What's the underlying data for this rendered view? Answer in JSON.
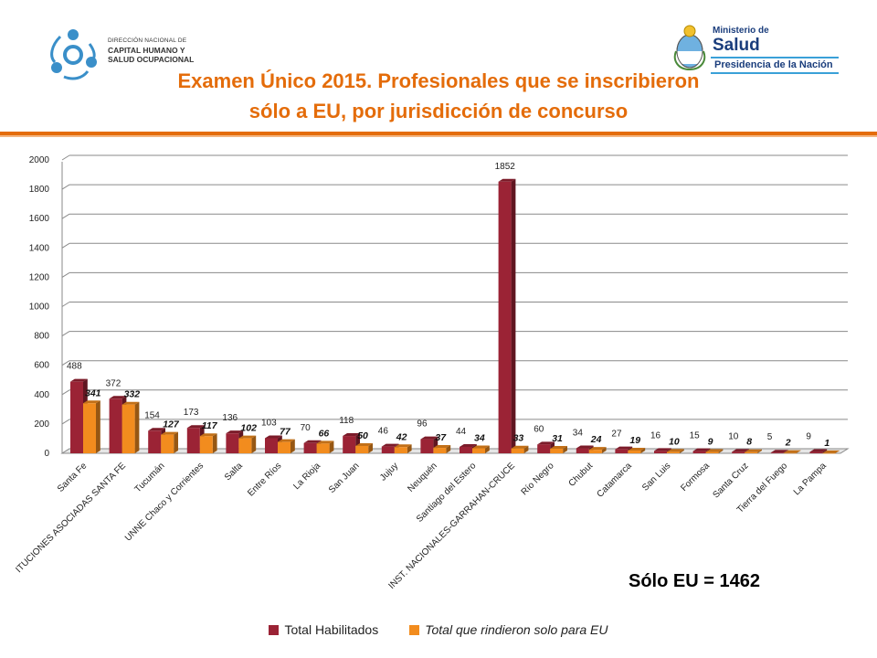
{
  "header": {
    "org_logo": {
      "icon": "capital-humano-logo-icon",
      "line1": "DIRECCIÓN NACIONAL DE",
      "line2": "CAPITAL HUMANO Y",
      "line3": "SALUD OCUPACIONAL"
    },
    "ministry_logo": {
      "icon": "argentina-coat-of-arms-icon",
      "line1": "Ministerio de",
      "line2": "Salud",
      "line3": "Presidencia de la Nación"
    },
    "title_line1": "Examen Único 2015. Profesionales que se inscribieron",
    "title_line2": "sólo a EU, por jurisdicción de concurso"
  },
  "summary": "Sólo EU = 1462",
  "colors": {
    "series1": "#9b2335",
    "series2": "#f28c1e",
    "title": "#e46c0a"
  },
  "chart_data": {
    "type": "bar",
    "ylim": [
      0,
      2000
    ],
    "yticks": [
      0,
      200,
      400,
      600,
      800,
      1000,
      1200,
      1400,
      1600,
      1800,
      2000
    ],
    "grid": true,
    "legend_position": "bottom",
    "categories": [
      "Santa Fe",
      "ITUCIONES ASOCIADAS SANTA FE",
      "Tucumán",
      "UNNE Chaco y Corrientes",
      "Salta",
      "Entre Ríos",
      "La Rioja",
      "San Juan",
      "Jujuy",
      "Neuquén",
      "Santiago del Estero",
      "INST. NACIONALES-GARRAHAN-CRUCE",
      "Río Negro",
      "Chubut",
      "Catamarca",
      "San Luis",
      "Formosa",
      "Santa Cruz",
      "Tierra del Fuego",
      "La Pampa"
    ],
    "series": [
      {
        "name": "Total Habilitados",
        "values": [
          488,
          372,
          154,
          173,
          136,
          103,
          70,
          118,
          46,
          96,
          44,
          1852,
          60,
          34,
          27,
          16,
          15,
          10,
          5,
          9
        ]
      },
      {
        "name": "Total que rindieron solo para EU",
        "values": [
          341,
          332,
          127,
          117,
          102,
          77,
          66,
          50,
          42,
          37,
          34,
          33,
          31,
          24,
          19,
          10,
          9,
          8,
          2,
          1
        ]
      }
    ]
  }
}
